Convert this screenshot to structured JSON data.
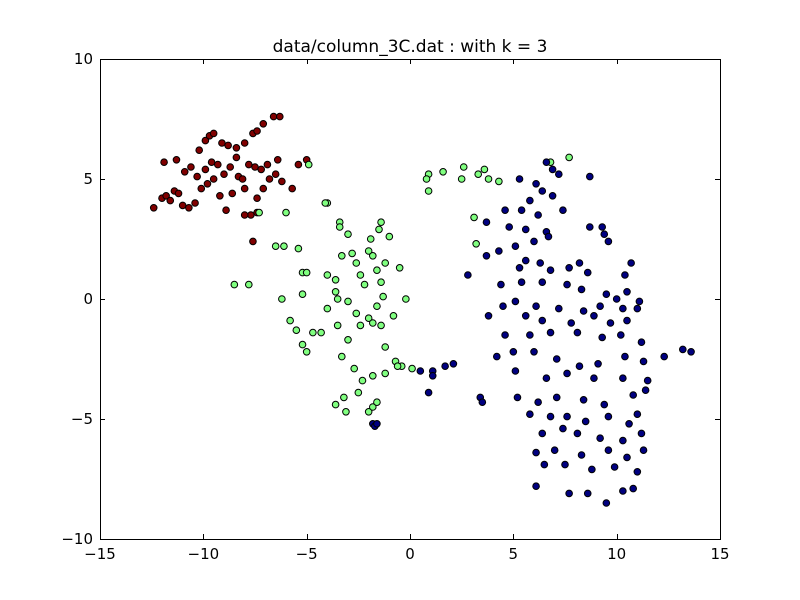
{
  "chart_data": {
    "type": "scatter",
    "title": "data/column_3C.dat : with k = 3",
    "xlabel": "",
    "ylabel": "",
    "xlim": [
      -15,
      15
    ],
    "ylim": [
      -10,
      10
    ],
    "xticks": [
      -15,
      -10,
      -5,
      0,
      5,
      10,
      15
    ],
    "xtick_labels": [
      "−15",
      "−10",
      "−5",
      "0",
      "5",
      "10",
      "15"
    ],
    "yticks": [
      -10,
      -5,
      0,
      5,
      10
    ],
    "ytick_labels": [
      "−10",
      "−5",
      "0",
      "5",
      "10"
    ],
    "grid": false,
    "legend": "none",
    "series": [
      {
        "color": "#800000",
        "points": [
          [
            -12.4,
            3.8
          ],
          [
            -12.0,
            4.2
          ],
          [
            -11.8,
            4.3
          ],
          [
            -11.6,
            4.1
          ],
          [
            -11.4,
            4.5
          ],
          [
            -11.2,
            4.4
          ],
          [
            -11.0,
            3.9
          ],
          [
            -10.7,
            3.8
          ],
          [
            -10.4,
            4.0
          ],
          [
            -10.1,
            4.6
          ],
          [
            -9.8,
            4.8
          ],
          [
            -9.5,
            5.0
          ],
          [
            -9.2,
            4.3
          ],
          [
            -8.9,
            3.7
          ],
          [
            -8.6,
            4.4
          ],
          [
            -8.3,
            5.1
          ],
          [
            -8.0,
            4.6
          ],
          [
            -7.7,
            3.5
          ],
          [
            -7.4,
            4.2
          ],
          [
            -7.1,
            4.6
          ],
          [
            -6.8,
            5.0
          ],
          [
            -6.5,
            5.2
          ],
          [
            -6.2,
            4.9
          ],
          [
            -5.7,
            4.6
          ],
          [
            -11.9,
            5.7
          ],
          [
            -11.3,
            5.8
          ],
          [
            -10.9,
            5.3
          ],
          [
            -10.6,
            5.5
          ],
          [
            -10.3,
            5.1
          ],
          [
            -9.9,
            5.4
          ],
          [
            -9.6,
            5.7
          ],
          [
            -9.3,
            5.6
          ],
          [
            -9.0,
            5.2
          ],
          [
            -8.7,
            5.5
          ],
          [
            -8.4,
            5.9
          ],
          [
            -8.1,
            5.0
          ],
          [
            -7.8,
            5.6
          ],
          [
            -7.5,
            5.5
          ],
          [
            -7.2,
            5.4
          ],
          [
            -6.9,
            5.6
          ],
          [
            -6.4,
            5.8
          ],
          [
            -5.4,
            5.6
          ],
          [
            -5.0,
            5.8
          ],
          [
            -10.2,
            6.2
          ],
          [
            -9.9,
            6.6
          ],
          [
            -9.7,
            6.8
          ],
          [
            -9.5,
            6.9
          ],
          [
            -9.1,
            6.5
          ],
          [
            -8.8,
            6.4
          ],
          [
            -8.4,
            6.3
          ],
          [
            -8.0,
            6.5
          ],
          [
            -7.6,
            6.9
          ],
          [
            -7.4,
            7.0
          ],
          [
            -7.1,
            7.3
          ],
          [
            -6.6,
            7.6
          ],
          [
            -6.3,
            7.6
          ],
          [
            -8.0,
            3.5
          ],
          [
            -7.4,
            3.6
          ],
          [
            -7.6,
            2.4
          ]
        ]
      },
      {
        "color": "#80ff80",
        "points": [
          [
            0.9,
            5.2
          ],
          [
            0.9,
            4.5
          ],
          [
            1.6,
            5.3
          ],
          [
            2.5,
            5.0
          ],
          [
            2.6,
            5.5
          ],
          [
            3.3,
            5.2
          ],
          [
            3.6,
            5.4
          ],
          [
            3.8,
            5.0
          ],
          [
            4.3,
            4.9
          ],
          [
            6.8,
            5.7
          ],
          [
            7.7,
            5.9
          ],
          [
            0.8,
            5.0
          ],
          [
            3.1,
            3.4
          ],
          [
            3.2,
            2.3
          ],
          [
            -4.9,
            5.6
          ],
          [
            -4.0,
            4.0
          ],
          [
            -4.1,
            4.0
          ],
          [
            -3.4,
            3.2
          ],
          [
            -3.4,
            3.0
          ],
          [
            -3.0,
            2.7
          ],
          [
            -7.3,
            3.6
          ],
          [
            -6.0,
            3.6
          ],
          [
            -6.5,
            2.2
          ],
          [
            -6.1,
            2.2
          ],
          [
            -5.4,
            2.1
          ],
          [
            -5.2,
            1.1
          ],
          [
            -5.0,
            1.1
          ],
          [
            -5.2,
            0.2
          ],
          [
            -6.2,
            0.0
          ],
          [
            -7.8,
            0.6
          ],
          [
            -8.5,
            0.6
          ],
          [
            -5.8,
            -0.9
          ],
          [
            -5.5,
            -1.3
          ],
          [
            -4.7,
            -1.4
          ],
          [
            -4.3,
            -1.4
          ],
          [
            -5.2,
            -1.9
          ],
          [
            -5.0,
            -2.2
          ],
          [
            -4.0,
            -0.4
          ],
          [
            -3.5,
            -1.1
          ],
          [
            -3.3,
            -2.4
          ],
          [
            -3.0,
            -1.7
          ],
          [
            -4.0,
            1.0
          ],
          [
            -3.6,
            0.8
          ],
          [
            -3.3,
            1.8
          ],
          [
            -2.8,
            1.9
          ],
          [
            -2.6,
            1.5
          ],
          [
            -2.4,
            1.0
          ],
          [
            -2.2,
            0.6
          ],
          [
            -2.0,
            2.0
          ],
          [
            -1.8,
            1.8
          ],
          [
            -1.6,
            1.2
          ],
          [
            -1.4,
            0.7
          ],
          [
            -1.2,
            1.5
          ],
          [
            -0.5,
            1.3
          ],
          [
            -0.2,
            0.0
          ],
          [
            -1.3,
            0.1
          ],
          [
            -1.6,
            -0.3
          ],
          [
            -2.0,
            -0.8
          ],
          [
            -2.4,
            -1.1
          ],
          [
            -2.6,
            -0.6
          ],
          [
            -3.0,
            -0.1
          ],
          [
            -3.6,
            0.3
          ],
          [
            -1.8,
            -1.0
          ],
          [
            -1.4,
            -1.1
          ],
          [
            -0.8,
            -0.7
          ],
          [
            -1.2,
            -2.0
          ],
          [
            -0.7,
            -2.6
          ],
          [
            -0.4,
            -2.8
          ],
          [
            0.1,
            -2.9
          ],
          [
            -2.7,
            -2.9
          ],
          [
            -2.3,
            -3.4
          ],
          [
            -1.8,
            -3.2
          ],
          [
            -3.2,
            -4.1
          ],
          [
            -3.6,
            -4.4
          ],
          [
            -3.1,
            -4.7
          ],
          [
            -2.0,
            -4.7
          ],
          [
            -1.8,
            -4.5
          ],
          [
            -1.6,
            -4.3
          ],
          [
            -2.5,
            -3.9
          ],
          [
            -1.2,
            -3.1
          ],
          [
            -0.6,
            -2.8
          ],
          [
            -1.9,
            2.5
          ],
          [
            -1.4,
            3.2
          ],
          [
            -1.5,
            2.9
          ],
          [
            -1.0,
            2.6
          ],
          [
            -3.5,
            0.0
          ]
        ]
      },
      {
        "color": "#000080",
        "points": [
          [
            5.3,
            5.0
          ],
          [
            6.1,
            4.8
          ],
          [
            6.6,
            5.7
          ],
          [
            6.9,
            5.4
          ],
          [
            7.2,
            5.2
          ],
          [
            8.7,
            5.1
          ],
          [
            6.4,
            4.5
          ],
          [
            6.9,
            4.3
          ],
          [
            5.8,
            4.1
          ],
          [
            4.6,
            3.7
          ],
          [
            5.4,
            3.7
          ],
          [
            6.2,
            3.5
          ],
          [
            7.4,
            3.7
          ],
          [
            3.7,
            3.2
          ],
          [
            4.8,
            3.0
          ],
          [
            5.6,
            2.9
          ],
          [
            6.6,
            2.8
          ],
          [
            8.7,
            3.0
          ],
          [
            9.3,
            3.0
          ],
          [
            9.4,
            2.7
          ],
          [
            5.1,
            2.2
          ],
          [
            6.0,
            2.4
          ],
          [
            6.7,
            2.6
          ],
          [
            9.6,
            2.4
          ],
          [
            3.7,
            1.8
          ],
          [
            4.3,
            2.0
          ],
          [
            5.6,
            1.6
          ],
          [
            6.3,
            1.5
          ],
          [
            8.2,
            1.5
          ],
          [
            10.7,
            1.5
          ],
          [
            2.8,
            1.0
          ],
          [
            5.3,
            1.3
          ],
          [
            6.8,
            1.2
          ],
          [
            7.7,
            1.3
          ],
          [
            8.6,
            1.1
          ],
          [
            10.4,
            1.0
          ],
          [
            4.4,
            0.6
          ],
          [
            5.4,
            0.7
          ],
          [
            6.4,
            0.7
          ],
          [
            7.6,
            0.6
          ],
          [
            8.3,
            0.4
          ],
          [
            9.5,
            0.2
          ],
          [
            10.0,
            0.0
          ],
          [
            10.5,
            0.3
          ],
          [
            4.5,
            -0.3
          ],
          [
            5.1,
            -0.1
          ],
          [
            6.1,
            -0.3
          ],
          [
            7.2,
            -0.4
          ],
          [
            8.4,
            -0.5
          ],
          [
            9.2,
            -0.3
          ],
          [
            10.3,
            -0.4
          ],
          [
            11.1,
            -0.1
          ],
          [
            3.8,
            -0.7
          ],
          [
            5.6,
            -0.7
          ],
          [
            6.4,
            -0.9
          ],
          [
            7.8,
            -1.0
          ],
          [
            8.9,
            -0.7
          ],
          [
            9.7,
            -1.0
          ],
          [
            10.5,
            -0.9
          ],
          [
            11.0,
            -0.4
          ],
          [
            4.6,
            -1.5
          ],
          [
            5.8,
            -1.5
          ],
          [
            6.8,
            -1.4
          ],
          [
            8.1,
            -1.4
          ],
          [
            9.3,
            -1.6
          ],
          [
            10.2,
            -1.5
          ],
          [
            11.2,
            -1.8
          ],
          [
            4.2,
            -2.4
          ],
          [
            5.0,
            -2.2
          ],
          [
            6.0,
            -2.2
          ],
          [
            7.1,
            -2.5
          ],
          [
            8.2,
            -2.8
          ],
          [
            9.1,
            -2.7
          ],
          [
            10.4,
            -2.4
          ],
          [
            11.3,
            -2.6
          ],
          [
            12.3,
            -2.4
          ],
          [
            13.2,
            -2.1
          ],
          [
            13.6,
            -2.2
          ],
          [
            5.1,
            -3.0
          ],
          [
            6.6,
            -3.3
          ],
          [
            7.6,
            -3.1
          ],
          [
            8.9,
            -3.3
          ],
          [
            10.3,
            -3.3
          ],
          [
            11.5,
            -3.4
          ],
          [
            5.2,
            -4.1
          ],
          [
            6.2,
            -4.3
          ],
          [
            7.1,
            -4.1
          ],
          [
            8.4,
            -4.2
          ],
          [
            9.4,
            -4.4
          ],
          [
            10.8,
            -4.0
          ],
          [
            11.4,
            -3.8
          ],
          [
            5.8,
            -4.8
          ],
          [
            6.8,
            -4.9
          ],
          [
            7.6,
            -4.9
          ],
          [
            8.5,
            -5.1
          ],
          [
            9.6,
            -4.9
          ],
          [
            10.6,
            -5.2
          ],
          [
            11.0,
            -4.8
          ],
          [
            6.4,
            -5.6
          ],
          [
            7.4,
            -5.4
          ],
          [
            8.1,
            -5.6
          ],
          [
            9.2,
            -5.8
          ],
          [
            10.3,
            -5.9
          ],
          [
            11.2,
            -5.6
          ],
          [
            6.1,
            -6.4
          ],
          [
            7.0,
            -6.3
          ],
          [
            8.3,
            -6.5
          ],
          [
            9.6,
            -6.3
          ],
          [
            10.5,
            -6.6
          ],
          [
            11.3,
            -6.3
          ],
          [
            6.5,
            -6.9
          ],
          [
            7.5,
            -6.9
          ],
          [
            8.8,
            -7.1
          ],
          [
            9.9,
            -7.0
          ],
          [
            11.0,
            -7.2
          ],
          [
            6.1,
            -7.8
          ],
          [
            7.7,
            -8.1
          ],
          [
            8.6,
            -8.1
          ],
          [
            9.5,
            -8.5
          ],
          [
            10.3,
            -8.0
          ],
          [
            10.8,
            -7.9
          ],
          [
            3.4,
            -4.1
          ],
          [
            3.5,
            -4.3
          ],
          [
            2.1,
            -2.7
          ],
          [
            1.7,
            -2.8
          ],
          [
            1.1,
            -3.0
          ],
          [
            0.5,
            -3.0
          ],
          [
            1.1,
            -3.2
          ],
          [
            0.9,
            -3.9
          ],
          [
            -1.8,
            -5.2
          ],
          [
            -1.7,
            -5.3
          ],
          [
            -1.6,
            -5.2
          ]
        ]
      }
    ]
  }
}
